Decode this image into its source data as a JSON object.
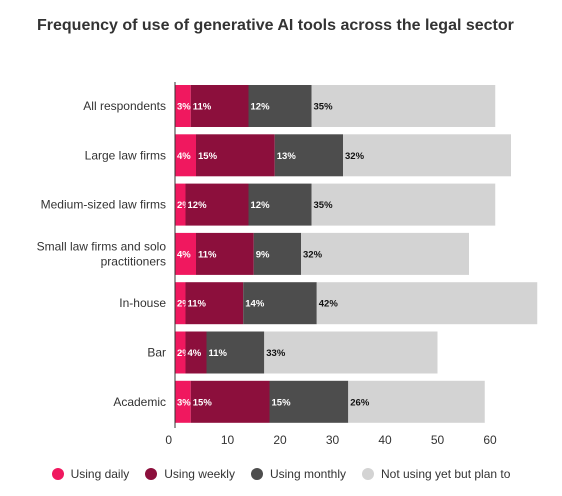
{
  "chart_data": {
    "type": "bar",
    "orientation": "horizontal",
    "stacked": true,
    "title": "Frequency of use of generative AI tools across the legal sector",
    "categories": [
      [
        "All respondents"
      ],
      [
        "Large law firms"
      ],
      [
        "Medium-sized law firms"
      ],
      [
        "Small law firms and solo",
        "practitioners"
      ],
      [
        "In-house"
      ],
      [
        "Bar"
      ],
      [
        "Academic"
      ]
    ],
    "series": [
      {
        "name": "Using daily",
        "color": "#f0185f",
        "values": [
          3,
          4,
          2,
          4,
          2,
          2,
          3
        ],
        "labels": [
          "3%",
          "4%",
          "2%",
          "4%",
          "2%",
          "2%",
          "3%"
        ]
      },
      {
        "name": "Using weekly",
        "color": "#8c0f3c",
        "values": [
          11,
          15,
          12,
          11,
          11,
          4,
          15
        ],
        "labels": [
          "11%",
          "15%",
          "12%",
          "11%",
          "11%",
          "4%",
          "15%"
        ]
      },
      {
        "name": "Using monthly",
        "color": "#4d4d4d",
        "values": [
          12,
          13,
          12,
          9,
          14,
          11,
          15
        ],
        "labels": [
          "12%",
          "13%",
          "12%",
          "9%",
          "14%",
          "11%",
          "15%"
        ]
      },
      {
        "name": "Not using yet but plan to",
        "color": "#d3d3d3",
        "values": [
          35,
          32,
          35,
          32,
          42,
          33,
          26
        ],
        "labels": [
          "35%",
          "32%",
          "35%",
          "32%",
          "42%",
          "33%",
          "26%"
        ]
      }
    ],
    "xlim": [
      0,
      70
    ],
    "x_ticks": [
      0,
      10,
      20,
      30,
      40,
      50,
      60
    ],
    "grid": false,
    "legend_position": "bottom"
  }
}
